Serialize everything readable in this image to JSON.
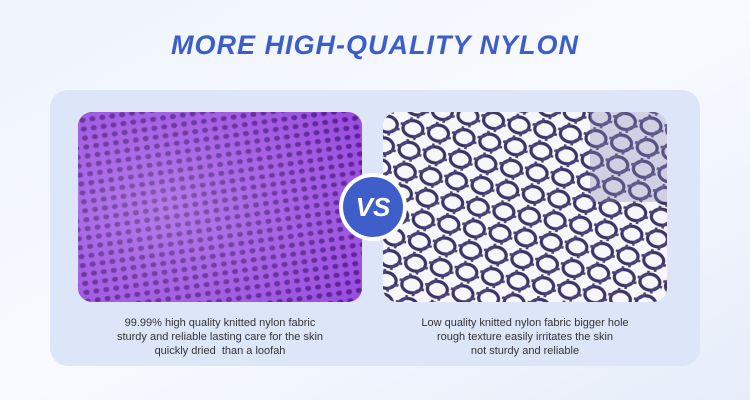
{
  "header": {
    "title": "MORE HIGH-QUALITY NYLON"
  },
  "comparison": {
    "badge": "VS",
    "left": {
      "lines": [
        "99.99% high quality knitted nylon fabric",
        "sturdy and reliable lasting care for the skin",
        "quickly dried  than a loofah"
      ]
    },
    "right": {
      "lines": [
        "Low quality knitted nylon fabric bigger hole",
        "rough texture easily irritates the skin",
        "not sturdy and reliable"
      ]
    }
  }
}
